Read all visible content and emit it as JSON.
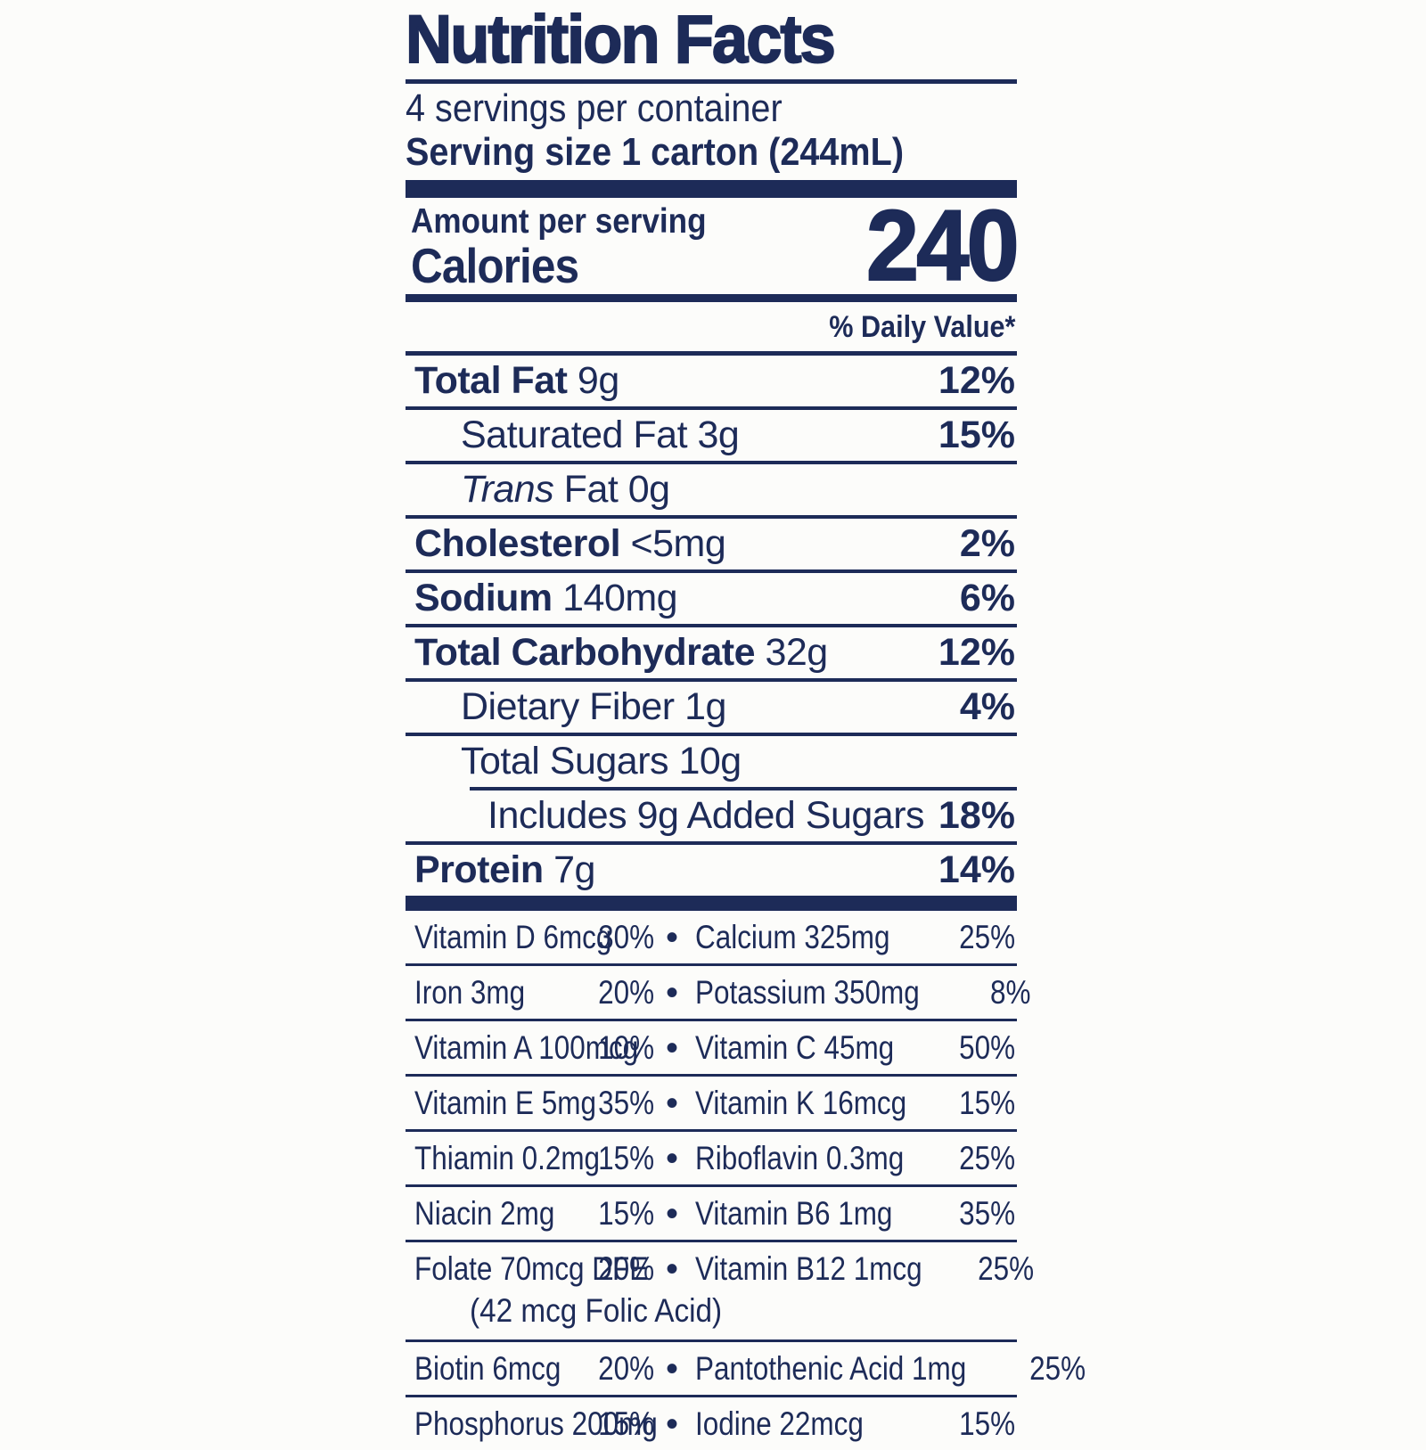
{
  "label": {
    "title": "Nutrition Facts",
    "servings_per_container": "4 servings per container",
    "serving_size_label": "Serving size",
    "serving_size_value": "1 carton (244mL)",
    "amount_per_serving": "Amount per serving",
    "calories_label": "Calories",
    "calories_value": "240",
    "daily_value_header": "% Daily Value*",
    "bullet": "•",
    "colors": {
      "navy": "#1d2b58",
      "background": "#fcfcfa"
    },
    "nutrients": [
      {
        "name": "Total Fat",
        "amount": "9g",
        "dv": "12%",
        "style": "main"
      },
      {
        "name": "Saturated Fat",
        "amount": "3g",
        "dv": "15%",
        "style": "sub"
      },
      {
        "name": "Trans",
        "name_suffix": " Fat",
        "amount": "0g",
        "dv": "",
        "style": "sub-italic"
      },
      {
        "name": "Cholesterol",
        "amount": "<5mg",
        "dv": "2%",
        "style": "main"
      },
      {
        "name": "Sodium",
        "amount": "140mg",
        "dv": "6%",
        "style": "main"
      },
      {
        "name": "Total Carbohydrate",
        "amount": "32g",
        "dv": "12%",
        "style": "main"
      },
      {
        "name": "Dietary Fiber",
        "amount": "1g",
        "dv": "4%",
        "style": "sub"
      },
      {
        "name": "Total Sugars",
        "amount": "10g",
        "dv": "",
        "style": "sub",
        "no_rule_below": true
      },
      {
        "name": "Includes 9g Added Sugars",
        "amount": "",
        "dv": "18%",
        "style": "sub2",
        "partial_rule_above": true
      },
      {
        "name": "Protein",
        "amount": "7g",
        "dv": "14%",
        "style": "main",
        "no_rule_below": true
      }
    ],
    "micronutrient_rows": [
      {
        "left": "Vitamin D 6mcg",
        "left_dv": "30%",
        "right": "Calcium 325mg",
        "right_dv": "25%"
      },
      {
        "left": "Iron 3mg",
        "left_dv": "20%",
        "right": "Potassium 350mg",
        "right_dv": "8%"
      },
      {
        "left": "Vitamin A 100mcg",
        "left_dv": "10%",
        "right": "Vitamin C 45mg",
        "right_dv": "50%"
      },
      {
        "left": "Vitamin E 5mg",
        "left_dv": "35%",
        "right": "Vitamin K 16mcg",
        "right_dv": "15%"
      },
      {
        "left": "Thiamin 0.2mg",
        "left_dv": "15%",
        "right": "Riboflavin 0.3mg",
        "right_dv": "25%"
      },
      {
        "left": "Niacin 2mg",
        "left_dv": "15%",
        "right": "Vitamin B6 1mg",
        "right_dv": "35%"
      },
      {
        "left": "Folate 70mcg DFE",
        "left_dv": "20%",
        "right": "Vitamin B12 1mcg",
        "right_dv": "25%",
        "left_note": "(42 mcg Folic Acid)"
      },
      {
        "left": "Biotin 6mcg",
        "left_dv": "20%",
        "right": "Pantothenic Acid 1mg",
        "right_dv": "25%"
      },
      {
        "left": "Phosphorus 200mg",
        "left_dv": "15%",
        "right": "Iodine 22mcg",
        "right_dv": "15%",
        "no_rule_below": true
      }
    ]
  }
}
